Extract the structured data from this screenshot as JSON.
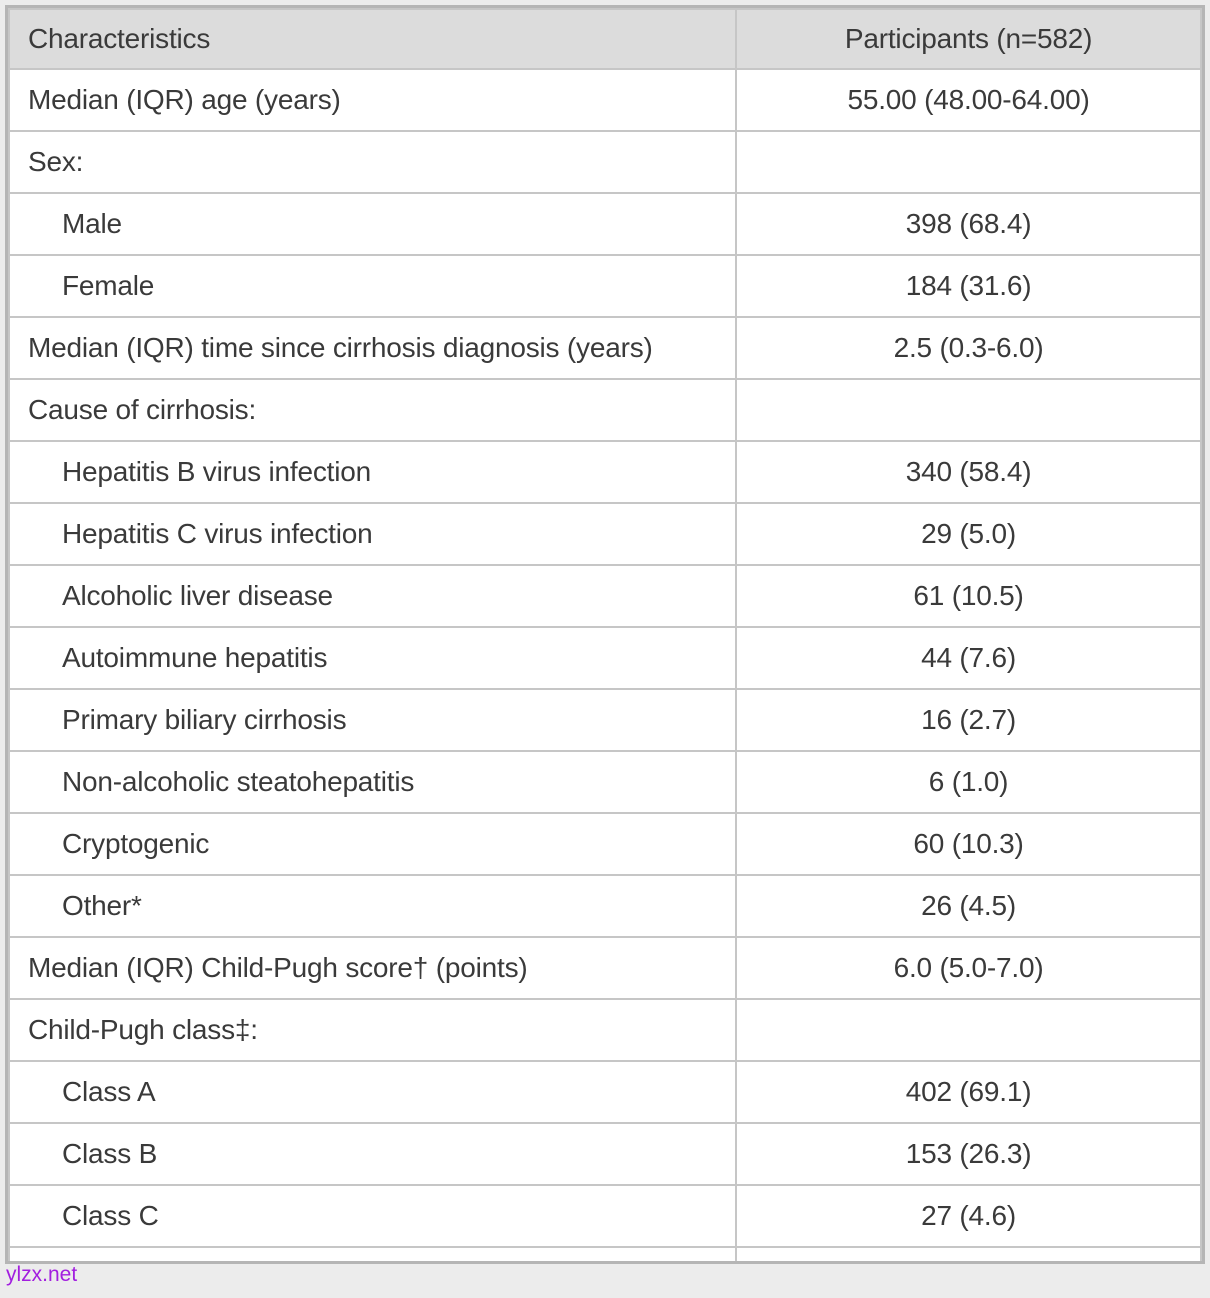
{
  "page": {
    "watermark": "ylzx.net"
  },
  "colors": {
    "page_background": "#ececec",
    "outer_border": "#b5b5b5",
    "grid_border": "#c6c6c6",
    "header_background": "#dcdcdc",
    "row_background": "#ffffff",
    "text": "#3a3a3a",
    "watermark": "#a21fdf"
  },
  "table": {
    "header": {
      "characteristics": "Characteristics",
      "participants": "Participants (n=582)"
    },
    "rows": [
      {
        "label": "Median (IQR) age (years)",
        "value": "55.00 (48.00-64.00)",
        "indent": 0
      },
      {
        "label": "Sex:",
        "value": "",
        "indent": 0
      },
      {
        "label": "Male",
        "value": "398 (68.4)",
        "indent": 1
      },
      {
        "label": "Female",
        "value": "184 (31.6)",
        "indent": 1
      },
      {
        "label": "Median (IQR) time since cirrhosis diagnosis (years)",
        "value": "2.5 (0.3-6.0)",
        "indent": 0
      },
      {
        "label": "Cause of cirrhosis:",
        "value": "",
        "indent": 0
      },
      {
        "label": "Hepatitis B virus infection",
        "value": "340 (58.4)",
        "indent": 1
      },
      {
        "label": "Hepatitis C virus infection",
        "value": "29 (5.0)",
        "indent": 1
      },
      {
        "label": "Alcoholic liver disease",
        "value": "61 (10.5)",
        "indent": 1
      },
      {
        "label": "Autoimmune hepatitis",
        "value": "44 (7.6)",
        "indent": 1
      },
      {
        "label": "Primary biliary cirrhosis",
        "value": "16 (2.7)",
        "indent": 1
      },
      {
        "label": "Non-alcoholic steatohepatitis",
        "value": "6 (1.0)",
        "indent": 1
      },
      {
        "label": "Cryptogenic",
        "value": "60 (10.3)",
        "indent": 1
      },
      {
        "label": "Other*",
        "value": "26 (4.5)",
        "indent": 1
      },
      {
        "label": "Median (IQR) Child-Pugh score† (points)",
        "value": "6.0 (5.0-7.0)",
        "indent": 0
      },
      {
        "label": "Child-Pugh class‡:",
        "value": "",
        "indent": 0
      },
      {
        "label": "Class A",
        "value": "402 (69.1)",
        "indent": 1
      },
      {
        "label": "Class B",
        "value": "153 (26.3)",
        "indent": 1
      },
      {
        "label": "Class C",
        "value": "27 (4.6)",
        "indent": 1
      }
    ]
  },
  "chart_data": {
    "type": "table",
    "title": "Participants (n=582)",
    "columns": [
      "Characteristics",
      "Participants (n=582)"
    ],
    "categories": [
      "Median (IQR) age (years)",
      "Sex:",
      "Male",
      "Female",
      "Median (IQR) time since cirrhosis diagnosis (years)",
      "Cause of cirrhosis:",
      "Hepatitis B virus infection",
      "Hepatitis C virus infection",
      "Alcoholic liver disease",
      "Autoimmune hepatitis",
      "Primary biliary cirrhosis",
      "Non-alcoholic steatohepatitis",
      "Cryptogenic",
      "Other*",
      "Median (IQR) Child-Pugh score† (points)",
      "Child-Pugh class‡:",
      "Class A",
      "Class B",
      "Class C"
    ],
    "values": [
      "55.00 (48.00-64.00)",
      "",
      "398 (68.4)",
      "184 (31.6)",
      "2.5 (0.3-6.0)",
      "",
      "340 (58.4)",
      "29 (5.0)",
      "61 (10.5)",
      "44 (7.6)",
      "16 (2.7)",
      "6 (1.0)",
      "60 (10.3)",
      "26 (4.5)",
      "6.0 (5.0-7.0)",
      "",
      "402 (69.1)",
      "153 (26.3)",
      "27 (4.6)"
    ]
  }
}
